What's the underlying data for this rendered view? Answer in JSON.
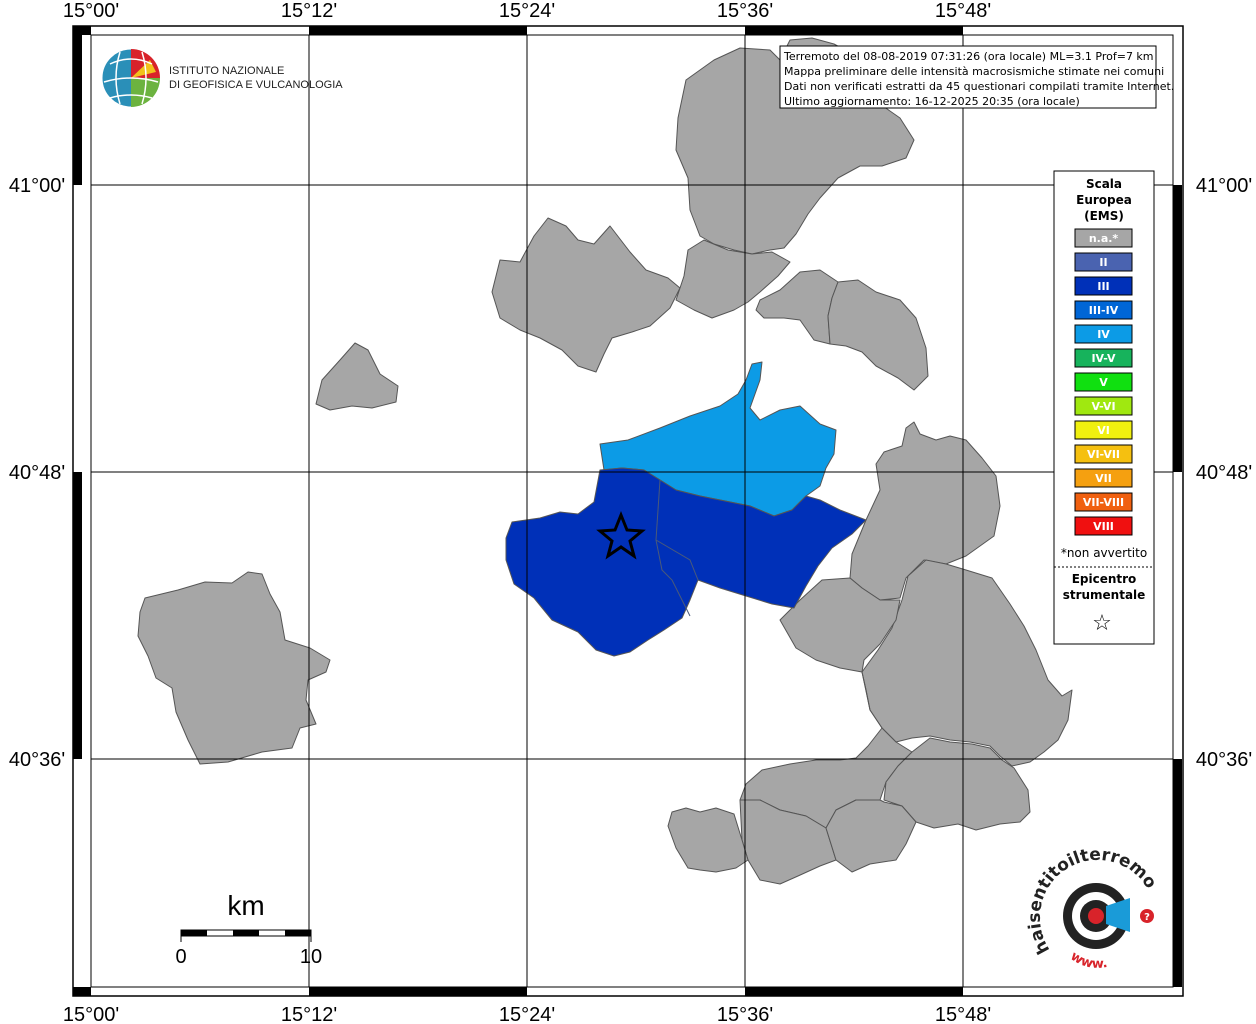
{
  "map": {
    "lon_labels": [
      "15°00'",
      "15°12'",
      "15°24'",
      "15°36'",
      "15°48'"
    ],
    "lat_labels": [
      "41°00'",
      "40°48'",
      "40°36'"
    ]
  },
  "info_box": {
    "lines": [
      "Terremoto del 08-08-2019 07:31:26 (ora locale) ML=3.1 Prof=7 km",
      "Mappa preliminare delle intensità macrosismiche stimate nei comuni",
      "Dati non verificati estratti da 45 questionari compilati tramite Internet.",
      "Ultimo aggiornamento: 16-12-2025 20:35 (ora locale)"
    ]
  },
  "logo_ingv": {
    "line1": "ISTITUTO NAZIONALE",
    "line2": "DI GEOFISICA E VULCANOLOGIA"
  },
  "legend": {
    "title_lines": [
      "Scala",
      "Europea",
      "(EMS)"
    ],
    "items": [
      {
        "label": "n.a.*",
        "color": "#a6a6a6"
      },
      {
        "label": "II",
        "color": "#4a63b0"
      },
      {
        "label": "III",
        "color": "#0030b8"
      },
      {
        "label": "III-IV",
        "color": "#0066d6"
      },
      {
        "label": "IV",
        "color": "#0c9be6"
      },
      {
        "label": "IV-V",
        "color": "#17b35c"
      },
      {
        "label": "V",
        "color": "#10e010"
      },
      {
        "label": "V-VI",
        "color": "#a0e810"
      },
      {
        "label": "VI",
        "color": "#f0f010"
      },
      {
        "label": "VI-VII",
        "color": "#f5c010"
      },
      {
        "label": "VII",
        "color": "#f5a010"
      },
      {
        "label": "VII-VIII",
        "color": "#f06010"
      },
      {
        "label": "VIII",
        "color": "#f01010"
      }
    ],
    "note": "*non avvertito",
    "epicenter_lines": [
      "Epicentro",
      "strumentale"
    ],
    "epicenter_symbol": "☆"
  },
  "scale_bar": {
    "unit": "km",
    "start": "0",
    "end": "10"
  },
  "logo_hsit": {
    "text": "haisentitoilterremoto.it",
    "url": "www."
  },
  "colors": {
    "na": "#a6a6a6",
    "III": "#0030b8",
    "IV": "#0c9be6"
  }
}
